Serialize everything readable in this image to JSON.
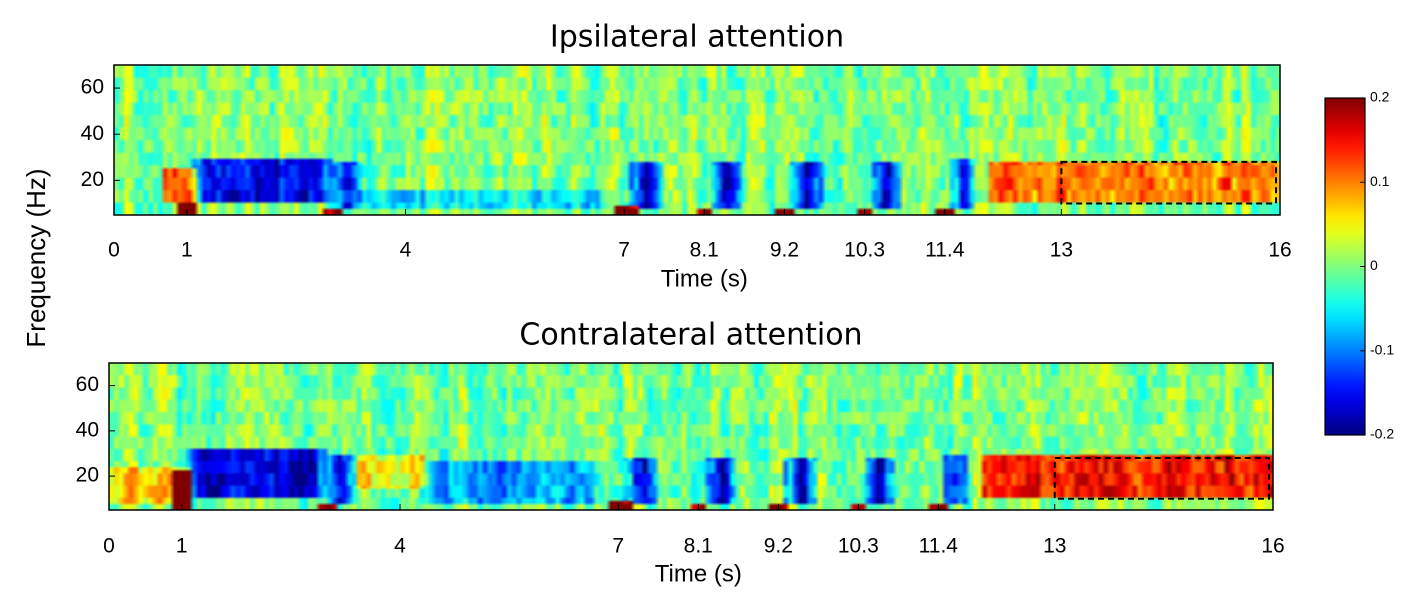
{
  "figure": {
    "ylabel": "Frequency (Hz)",
    "colorbar": {
      "min": -0.2,
      "max": 0.2,
      "colormap": "jet",
      "ticks": [
        0.2,
        0.1,
        0,
        -0.1,
        -0.2
      ],
      "tick_labels": [
        "0.2",
        "0.1",
        "0",
        "-0.1",
        "-0.2"
      ]
    }
  },
  "chart_data": [
    {
      "type": "heatmap",
      "title": "Ipsilateral attention",
      "xlabel": "Time (s)",
      "ylabel": "Frequency (Hz)",
      "xlim": [
        0,
        16
      ],
      "ylim": [
        5,
        70
      ],
      "xticks": [
        0,
        1,
        4,
        7,
        8.1,
        9.2,
        10.3,
        11.4,
        13,
        16
      ],
      "xtick_labels": [
        "0",
        "1",
        "4",
        "7",
        "8.1",
        "9.2",
        "10.3",
        "11.4",
        "13",
        "16"
      ],
      "yticks": [
        20,
        40,
        60
      ],
      "ytick_labels": [
        "20",
        "40",
        "60"
      ],
      "value_range": [
        -0.2,
        0.2
      ],
      "highlight_box": {
        "t": [
          13,
          16
        ],
        "f": [
          10,
          28
        ],
        "style": "dashed"
      },
      "features": [
        {
          "kind": "desync",
          "t": [
            1.1,
            3.0
          ],
          "f": [
            10,
            30
          ],
          "value": -0.16
        },
        {
          "kind": "desync",
          "t": [
            3.0,
            3.4
          ],
          "f": [
            8,
            28
          ],
          "value": -0.14
        },
        {
          "kind": "desync",
          "t": [
            3.4,
            6.8
          ],
          "f": [
            8,
            16
          ],
          "value": -0.06
        },
        {
          "kind": "desync",
          "t": [
            7.1,
            7.5
          ],
          "f": [
            8,
            28
          ],
          "value": -0.17
        },
        {
          "kind": "desync",
          "t": [
            8.2,
            8.6
          ],
          "f": [
            8,
            28
          ],
          "value": -0.17
        },
        {
          "kind": "desync",
          "t": [
            9.3,
            9.7
          ],
          "f": [
            8,
            28
          ],
          "value": -0.17
        },
        {
          "kind": "desync",
          "t": [
            10.4,
            10.8
          ],
          "f": [
            8,
            28
          ],
          "value": -0.17
        },
        {
          "kind": "desync",
          "t": [
            11.5,
            11.8
          ],
          "f": [
            8,
            30
          ],
          "value": -0.17
        },
        {
          "kind": "sync",
          "t": [
            0.7,
            1.1
          ],
          "f": [
            10,
            25
          ],
          "value": 0.12
        },
        {
          "kind": "sync",
          "t": [
            12.0,
            16.0
          ],
          "f": [
            10,
            28
          ],
          "value": 0.1
        },
        {
          "kind": "onset",
          "t": [
            0.9,
            1.1
          ],
          "f": [
            5,
            10
          ],
          "value": 0.25
        },
        {
          "kind": "onset",
          "t": [
            2.9,
            3.1
          ],
          "f": [
            5,
            8
          ],
          "value": 0.2
        },
        {
          "kind": "onset",
          "t": [
            6.9,
            7.2
          ],
          "f": [
            5,
            9
          ],
          "value": 0.25
        },
        {
          "kind": "onset",
          "t": [
            8.0,
            8.2
          ],
          "f": [
            5,
            8
          ],
          "value": 0.2
        },
        {
          "kind": "onset",
          "t": [
            9.1,
            9.3
          ],
          "f": [
            5,
            8
          ],
          "value": 0.2
        },
        {
          "kind": "onset",
          "t": [
            10.2,
            10.4
          ],
          "f": [
            5,
            8
          ],
          "value": 0.2
        },
        {
          "kind": "onset",
          "t": [
            11.3,
            11.5
          ],
          "f": [
            5,
            8
          ],
          "value": 0.2
        }
      ]
    },
    {
      "type": "heatmap",
      "title": "Contralateral attention",
      "xlabel": "Time (s)",
      "ylabel": "Frequency (Hz)",
      "xlim": [
        0,
        16
      ],
      "ylim": [
        5,
        70
      ],
      "xticks": [
        0,
        1,
        4,
        7,
        8.1,
        9.2,
        10.3,
        11.4,
        13,
        16
      ],
      "xtick_labels": [
        "0",
        "1",
        "4",
        "7",
        "8.1",
        "9.2",
        "10.3",
        "11.4",
        "13",
        "16"
      ],
      "yticks": [
        20,
        40,
        60
      ],
      "ytick_labels": [
        "20",
        "40",
        "60"
      ],
      "value_range": [
        -0.2,
        0.2
      ],
      "highlight_box": {
        "t": [
          13,
          16
        ],
        "f": [
          10,
          28
        ],
        "style": "dashed"
      },
      "features": [
        {
          "kind": "desync",
          "t": [
            1.1,
            3.0
          ],
          "f": [
            10,
            32
          ],
          "value": -0.16
        },
        {
          "kind": "desync",
          "t": [
            3.0,
            3.4
          ],
          "f": [
            8,
            30
          ],
          "value": -0.14
        },
        {
          "kind": "desync",
          "t": [
            4.3,
            6.8
          ],
          "f": [
            8,
            26
          ],
          "value": -0.08
        },
        {
          "kind": "desync",
          "t": [
            7.1,
            7.5
          ],
          "f": [
            8,
            28
          ],
          "value": -0.17
        },
        {
          "kind": "desync",
          "t": [
            8.2,
            8.6
          ],
          "f": [
            8,
            28
          ],
          "value": -0.17
        },
        {
          "kind": "desync",
          "t": [
            9.3,
            9.7
          ],
          "f": [
            8,
            28
          ],
          "value": -0.17
        },
        {
          "kind": "desync",
          "t": [
            10.4,
            10.8
          ],
          "f": [
            8,
            28
          ],
          "value": -0.17
        },
        {
          "kind": "desync",
          "t": [
            11.5,
            11.8
          ],
          "f": [
            8,
            30
          ],
          "value": -0.17
        },
        {
          "kind": "sync",
          "t": [
            0.0,
            1.1
          ],
          "f": [
            8,
            24
          ],
          "value": 0.06
        },
        {
          "kind": "sync",
          "t": [
            3.4,
            4.3
          ],
          "f": [
            14,
            30
          ],
          "value": 0.06
        },
        {
          "kind": "sync",
          "t": [
            12.0,
            16.0
          ],
          "f": [
            10,
            30
          ],
          "value": 0.14
        },
        {
          "kind": "onset",
          "t": [
            0.9,
            1.1
          ],
          "f": [
            5,
            22
          ],
          "value": 0.25
        },
        {
          "kind": "onset",
          "t": [
            2.9,
            3.1
          ],
          "f": [
            5,
            8
          ],
          "value": 0.2
        },
        {
          "kind": "onset",
          "t": [
            6.9,
            7.2
          ],
          "f": [
            5,
            9
          ],
          "value": 0.25
        },
        {
          "kind": "onset",
          "t": [
            8.0,
            8.2
          ],
          "f": [
            5,
            8
          ],
          "value": 0.2
        },
        {
          "kind": "onset",
          "t": [
            9.1,
            9.3
          ],
          "f": [
            5,
            8
          ],
          "value": 0.2
        },
        {
          "kind": "onset",
          "t": [
            10.2,
            10.4
          ],
          "f": [
            5,
            8
          ],
          "value": 0.2
        },
        {
          "kind": "onset",
          "t": [
            11.3,
            11.5
          ],
          "f": [
            5,
            8
          ],
          "value": 0.2
        }
      ]
    }
  ]
}
